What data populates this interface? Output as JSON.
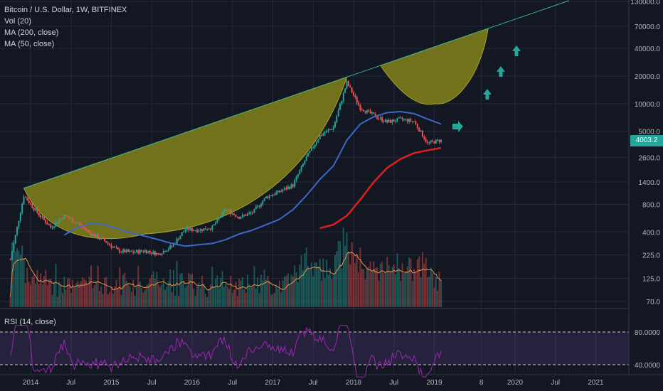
{
  "header": {
    "symbol": "Bitcoin / U.S. Dollar, 1W, BITFINEX",
    "indicators": [
      "Vol (20)",
      "MA (200, close)",
      "MA (50, close)"
    ],
    "rsi_label": "RSI (14, close)"
  },
  "colors": {
    "background": "#131722",
    "up": "#26a69a",
    "down": "#ef5350",
    "ma50": "#3d68c9",
    "ma200": "#e01e1e",
    "cup_fill": "#8c8c1a",
    "trendline": "#3fb28a",
    "arrow": "#26a69a",
    "rsi": "#9c27b0",
    "grid": "#242838",
    "text": "#b2b5be"
  },
  "price_axis": {
    "ticks": [
      "130000.0",
      "70000.0",
      "40000.0",
      "20000.0",
      "10000.0",
      "5000.0",
      "2600.0",
      "1400.0",
      "800.0",
      "400.0",
      "225.0",
      "125.0",
      "70.0"
    ],
    "last_price": "4003.2"
  },
  "rsi_axis": {
    "ticks": [
      "80.0000",
      "40.0000"
    ]
  },
  "time_axis": {
    "labels": [
      "2014",
      "Jul",
      "2015",
      "Jul",
      "2016",
      "Jul",
      "2017",
      "Jul",
      "2018",
      "Jul",
      "2019",
      "8",
      "2020",
      "Jul",
      "2021"
    ]
  },
  "chart_data": {
    "type": "line",
    "title": "Bitcoin / U.S. Dollar, 1W, BITFINEX",
    "y_scale": "log",
    "ylim": [
      70,
      130000
    ],
    "x": [
      "2013-10",
      "2013-12",
      "2014-02",
      "2014-04",
      "2014-06",
      "2014-08",
      "2014-10",
      "2014-12",
      "2015-02",
      "2015-04",
      "2015-06",
      "2015-08",
      "2015-10",
      "2015-12",
      "2016-02",
      "2016-04",
      "2016-06",
      "2016-08",
      "2016-10",
      "2016-12",
      "2017-02",
      "2017-04",
      "2017-06",
      "2017-08",
      "2017-10",
      "2017-12",
      "2018-02",
      "2018-04",
      "2018-06",
      "2018-08",
      "2018-10",
      "2018-12",
      "2019-02"
    ],
    "series": [
      {
        "name": "Price",
        "values": [
          200,
          1000,
          650,
          450,
          600,
          500,
          380,
          320,
          250,
          240,
          250,
          230,
          280,
          430,
          420,
          450,
          700,
          580,
          650,
          960,
          1100,
          1300,
          2600,
          4500,
          5500,
          17000,
          9000,
          7500,
          6300,
          6800,
          6400,
          3700,
          4003
        ]
      },
      {
        "name": "MA (50, close)",
        "values": [
          null,
          null,
          null,
          null,
          370,
          450,
          500,
          480,
          430,
          390,
          360,
          330,
          300,
          280,
          290,
          300,
          330,
          380,
          420,
          480,
          550,
          700,
          1000,
          1500,
          2100,
          4000,
          6000,
          7200,
          8000,
          8200,
          7800,
          6800,
          6000
        ]
      },
      {
        "name": "MA (200, close)",
        "values": [
          null,
          null,
          null,
          null,
          null,
          null,
          null,
          null,
          null,
          null,
          null,
          null,
          null,
          null,
          null,
          null,
          null,
          null,
          null,
          null,
          null,
          null,
          null,
          440,
          480,
          600,
          900,
          1400,
          2000,
          2500,
          2900,
          3100,
          3300
        ]
      }
    ]
  }
}
